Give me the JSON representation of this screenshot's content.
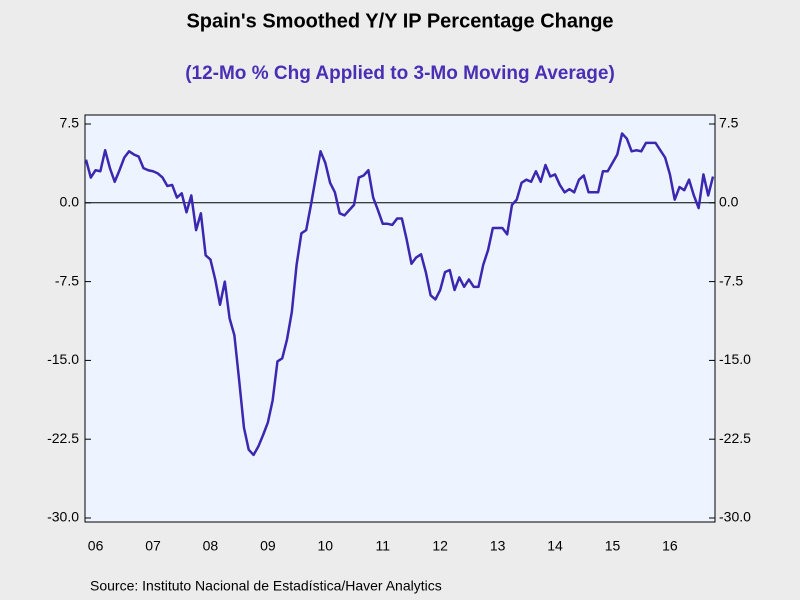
{
  "chart_data": {
    "type": "line",
    "title": "Spain's Smoothed Y/Y IP Percentage Change",
    "subtitle": "(12-Mo % Chg Applied to 3-Mo Moving Average)",
    "source": "Source:  Instituto Nacional de Estadística/Haver Analytics",
    "categories": [
      null,
      null,
      "06",
      null,
      null,
      null,
      null,
      null,
      null,
      null,
      null,
      null,
      null,
      null,
      "07",
      null,
      null,
      null,
      null,
      null,
      null,
      null,
      null,
      null,
      null,
      null,
      "08",
      null,
      null,
      null,
      null,
      null,
      null,
      null,
      null,
      null,
      null,
      null,
      "09",
      null,
      null,
      null,
      null,
      null,
      null,
      null,
      null,
      null,
      null,
      null,
      "10",
      null,
      null,
      null,
      null,
      null,
      null,
      null,
      null,
      null,
      null,
      null,
      "11",
      null,
      null,
      null,
      null,
      null,
      null,
      null,
      null,
      null,
      null,
      null,
      "12",
      null,
      null,
      null,
      null,
      null,
      null,
      null,
      null,
      null,
      null,
      null,
      "13",
      null,
      null,
      null,
      null,
      null,
      null,
      null,
      null,
      null,
      null,
      null,
      "14",
      null,
      null,
      null,
      null,
      null,
      null,
      null,
      null,
      null,
      null,
      null,
      "15",
      null,
      null,
      null,
      null,
      null,
      null,
      null,
      null,
      null,
      null,
      null,
      "16",
      null,
      null,
      null,
      null,
      null,
      null,
      null,
      null,
      null
    ],
    "series": [
      {
        "color": "#3b27b0",
        "values": [
          4.1,
          2.4,
          3.1,
          3.0,
          5.0,
          3.3,
          2.0,
          3.1,
          4.3,
          4.9,
          4.6,
          4.4,
          3.3,
          3.1,
          3.0,
          2.8,
          2.4,
          1.6,
          1.7,
          0.5,
          0.9,
          -0.9,
          0.7,
          -2.6,
          -1.0,
          -5.0,
          -5.4,
          -7.3,
          -9.7,
          -7.5,
          -11,
          -12.6,
          -16.9,
          -21.4,
          -23.5,
          -24.0,
          -23.2,
          -22.1,
          -20.9,
          -18.8,
          -15.1,
          -14.8,
          -13,
          -10.4,
          -5.9,
          -2.9,
          -2.6,
          -0.2,
          2.4,
          4.9,
          3.8,
          1.9,
          1.0,
          -1.0,
          -1.2,
          -0.7,
          -0.2,
          2.4,
          2.6,
          3.1,
          0.5,
          -0.7,
          -2.0,
          -2.0,
          -2.1,
          -1.5,
          -1.5,
          -3.5,
          -5.8,
          -5.2,
          -4.9,
          -6.6,
          -8.8,
          -9.2,
          -8.3,
          -6.6,
          -6.4,
          -8.3,
          -7.1,
          -8.0,
          -7.3,
          -8.0,
          -8.0,
          -5.9,
          -4.5,
          -2.4,
          -2.4,
          -2.4,
          -3.0,
          -0.2,
          0.3,
          1.9,
          2.2,
          2.0,
          3.0,
          2.0,
          3.6,
          2.5,
          2.7,
          1.7,
          1.0,
          1.3,
          1.0,
          2.2,
          2.6,
          1.0,
          1.0,
          1.0,
          3.0,
          3.0,
          3.8,
          4.6,
          6.6,
          6.1,
          4.9,
          5.0,
          4.9,
          5.7,
          5.7,
          5.7,
          5.0,
          4.3,
          2.7,
          0.3,
          1.5,
          1.2,
          2.2,
          0.7,
          -0.5,
          2.7,
          0.7,
          2.5
        ]
      }
    ],
    "ylim": [
      -30,
      7.5
    ],
    "yticks": [
      7.5,
      {
        "value": 0,
        "label": "0.0"
      },
      -7.5,
      {
        "value": -15,
        "label": "-15.0"
      },
      -22.5,
      {
        "value": -30,
        "label": "-30.0"
      }
    ],
    "y2lim": [
      -30,
      7.5
    ],
    "y2ticks": [
      7.5,
      {
        "value": 0,
        "label": "0.0"
      },
      -7.5,
      {
        "value": -15,
        "label": "-15.0"
      },
      -22.5,
      {
        "value": -30,
        "label": "-30.0"
      }
    ]
  }
}
